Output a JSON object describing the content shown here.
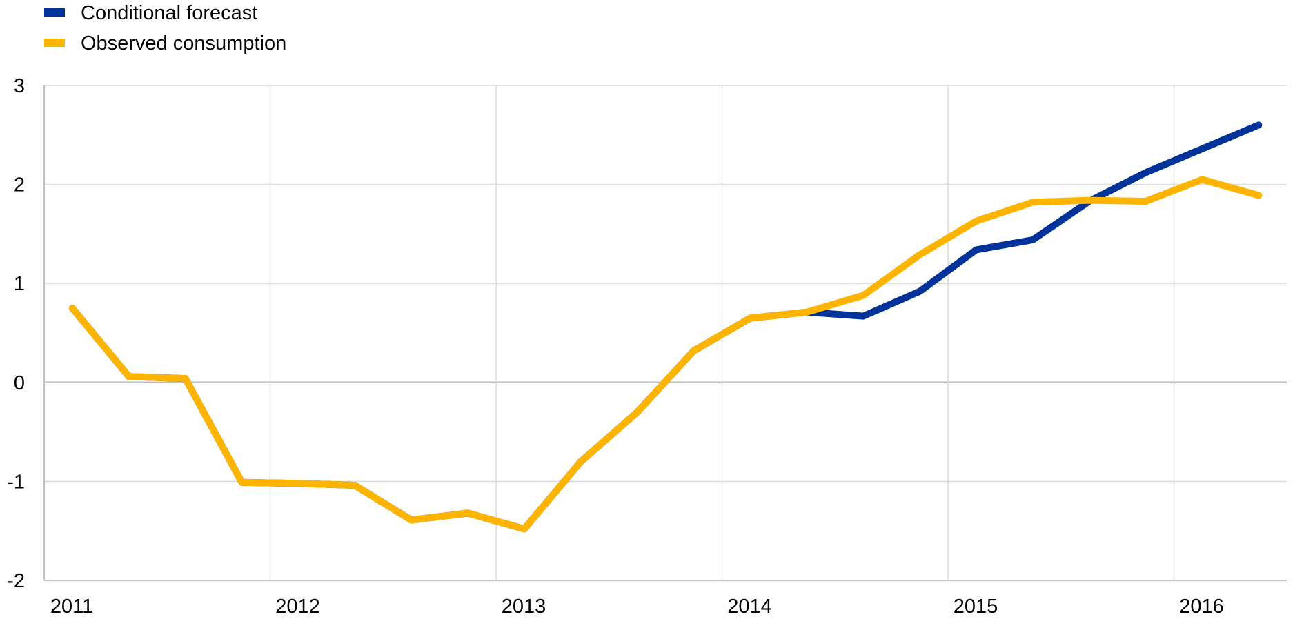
{
  "chart_data": {
    "type": "line",
    "title": "",
    "xlabel": "",
    "ylabel": "",
    "ylim": [
      -2,
      3
    ],
    "yticks": [
      3,
      2,
      1,
      0,
      -1,
      -2
    ],
    "xlim": [
      2011,
      2016.5
    ],
    "xticks": [
      "2011",
      "2012",
      "2013",
      "2014",
      "2015",
      "2016"
    ],
    "grid": true,
    "legend_placement": "top-left",
    "series": [
      {
        "name": "Conditional forecast",
        "color": "#003399",
        "x": [
          2011.125,
          2011.375,
          2011.625,
          2011.875,
          2012.125,
          2012.375,
          2012.625,
          2012.875,
          2013.125,
          2013.375,
          2013.625,
          2013.875,
          2014.125,
          2014.375,
          2014.625,
          2014.875,
          2015.125,
          2015.375,
          2015.625,
          2015.875,
          2016.125,
          2016.375
        ],
        "y": [
          0.75,
          0.06,
          0.04,
          -1.01,
          -1.02,
          -1.04,
          -1.39,
          -1.32,
          -1.48,
          -0.8,
          -0.3,
          0.32,
          0.65,
          0.71,
          0.67,
          0.92,
          1.34,
          1.44,
          1.83,
          2.12,
          2.36,
          2.6
        ]
      },
      {
        "name": "Observed consumption",
        "color": "#FFB400",
        "x": [
          2011.125,
          2011.375,
          2011.625,
          2011.875,
          2012.125,
          2012.375,
          2012.625,
          2012.875,
          2013.125,
          2013.375,
          2013.625,
          2013.875,
          2014.125,
          2014.375,
          2014.625,
          2014.875,
          2015.125,
          2015.375,
          2015.625,
          2015.875,
          2016.125,
          2016.375
        ],
        "y": [
          0.75,
          0.06,
          0.04,
          -1.01,
          -1.02,
          -1.04,
          -1.39,
          -1.32,
          -1.48,
          -0.8,
          -0.3,
          0.32,
          0.65,
          0.71,
          0.88,
          1.29,
          1.63,
          1.82,
          1.84,
          1.83,
          2.05,
          1.89
        ]
      }
    ]
  }
}
